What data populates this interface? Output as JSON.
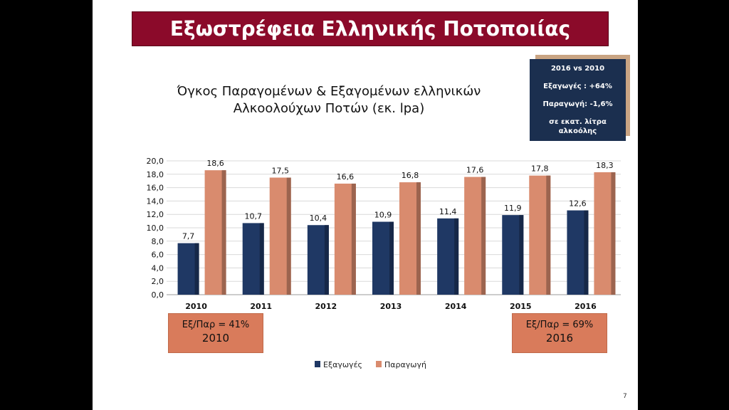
{
  "slide": {
    "title": "Εξωστρέφεια Ελληνικής Ποτοποιίας",
    "page_number": "7"
  },
  "info_box": {
    "line1": "2016 vs 2010",
    "line2": "Εξαγωγές : +64%",
    "line3": "Παραγωγή: -1,6%",
    "line4": "σε εκατ. λίτρα",
    "line5": "αλκοόλης"
  },
  "ratio_2010": {
    "line1": "Εξ/Παρ = 41%",
    "line2": "2010"
  },
  "ratio_2016": {
    "line1": "Εξ/Παρ = 69%",
    "line2": "2016"
  },
  "colors": {
    "exports": "#1f3864",
    "production": "#d98b6e",
    "title_bg": "#8b0a2a",
    "info_bg": "#1b2f4f"
  },
  "chart_data": {
    "type": "bar",
    "title_line1": "Όγκος Παραγομένων & Εξαγομένων ελληνικών",
    "title_line2": "Αλκοολούχων Ποτών (εκ. lpa)",
    "categories": [
      "2010",
      "2011",
      "2012",
      "2013",
      "2014",
      "2015",
      "2016"
    ],
    "series": [
      {
        "name": "Εξαγωγές",
        "values": [
          7.7,
          10.7,
          10.4,
          10.9,
          11.4,
          11.9,
          12.6
        ],
        "labels": [
          "7,7",
          "10,7",
          "10,4",
          "10,9",
          "11,4",
          "11,9",
          "12,6"
        ]
      },
      {
        "name": "Παραγωγή",
        "values": [
          18.6,
          17.5,
          16.6,
          16.8,
          17.6,
          17.8,
          18.3
        ],
        "labels": [
          "18,6",
          "17,5",
          "16,6",
          "16,8",
          "17,6",
          "17,8",
          "18,3"
        ]
      }
    ],
    "ylim": [
      0,
      20
    ],
    "yticks": [
      "0,0",
      "2,0",
      "4,0",
      "6,0",
      "8,0",
      "10,0",
      "12,0",
      "14,0",
      "16,0",
      "18,0",
      "20,0"
    ],
    "grid": true,
    "legend": "bottom"
  }
}
